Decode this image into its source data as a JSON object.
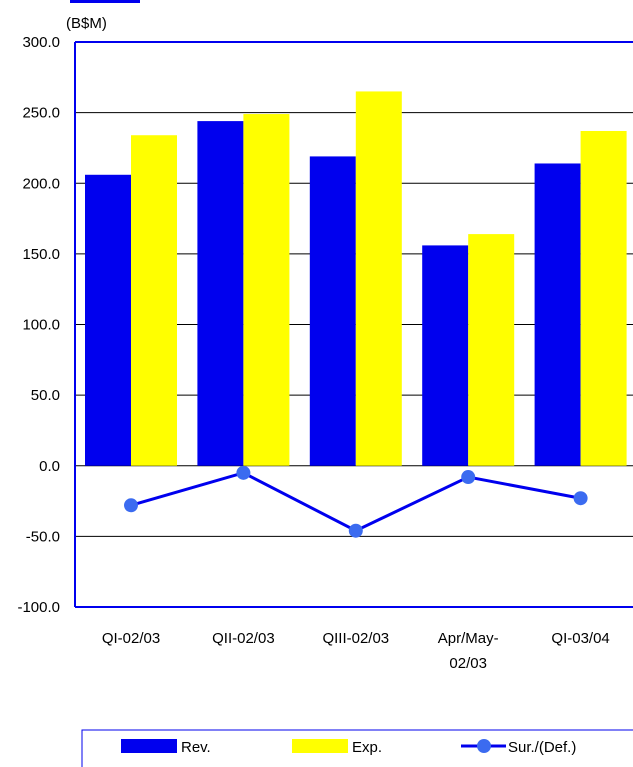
{
  "chart_data": {
    "type": "bar",
    "unit_label": "(B$M)",
    "categories": [
      [
        "QI-02/03"
      ],
      [
        "QII-02/03"
      ],
      [
        "QIII-02/03"
      ],
      [
        "Apr/May-",
        "02/03"
      ],
      [
        "QI-03/04"
      ]
    ],
    "series": [
      {
        "name": "Rev.",
        "type": "bar",
        "color": "#0000EE",
        "values": [
          206,
          244,
          219,
          156,
          214
        ]
      },
      {
        "name": "Exp.",
        "type": "bar",
        "color": "#FFFF00",
        "values": [
          234,
          249,
          265,
          164,
          237
        ]
      },
      {
        "name": "Sur./(Def.)",
        "type": "line",
        "color": "#0000EE",
        "marker_color": "#3B6BF0",
        "values": [
          -28,
          -5,
          -46,
          -8,
          -23
        ]
      }
    ],
    "yticks": [
      "300.0",
      "250.0",
      "200.0",
      "150.0",
      "100.0",
      "50.0",
      "0.0",
      "-50.0",
      "-100.0"
    ],
    "ylim": [
      -100,
      300
    ],
    "grid": true,
    "legend_position": "bottom"
  }
}
